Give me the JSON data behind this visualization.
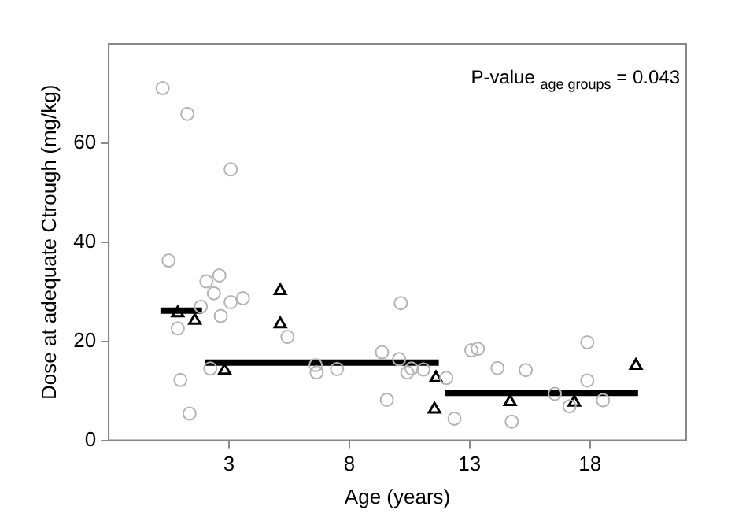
{
  "chart_data": {
    "type": "scatter",
    "xlabel": "Age (years)",
    "ylabel": "Dose at adequate Ctrough (mg/kg)",
    "annotations": [
      "P-value $_{age groups}$ = 0.043"
    ],
    "xlim": [
      -2,
      22
    ],
    "xticks": [
      3,
      8,
      13,
      18
    ],
    "ylim": [
      0,
      80
    ],
    "yticks": [
      0,
      20,
      40,
      60
    ],
    "grid": false,
    "legend": false,
    "series": [
      {
        "marker": "circle",
        "color": "#b4b4b4",
        "x": [
          0.24,
          1.27,
          3.07,
          0.49,
          2.06,
          2.6,
          2.37,
          3.07,
          3.58,
          1.83,
          2.66,
          0.87,
          0.98,
          1.36,
          2.22,
          5.43,
          6.6,
          6.64,
          7.49,
          9.36,
          9.56,
          10.14,
          10.07,
          10.41,
          10.59,
          11.08,
          12.03,
          12.37,
          13.07,
          13.34,
          14.16,
          15.33,
          14.75,
          16.54,
          17.15,
          17.89,
          17.89,
          18.54
        ],
        "values": [
          71.1,
          65.9,
          54.7,
          36.3,
          32.1,
          33.3,
          29.7,
          27.9,
          28.7,
          27,
          25.1,
          22.6,
          12.2,
          5.4,
          14.5,
          20.9,
          15.2,
          13.7,
          14.4,
          17.8,
          8.2,
          27.7,
          16.4,
          13.7,
          14.5,
          14.3,
          12.6,
          4.4,
          18.2,
          18.5,
          14.6,
          14.2,
          3.8,
          9.4,
          6.9,
          19.8,
          12.1,
          8.1
        ]
      },
      {
        "marker": "triangle",
        "color": "#000000",
        "x": [
          0.87,
          1.58,
          2.82,
          5.13,
          5.13,
          11.6,
          11.54,
          14.68,
          17.35,
          19.91
        ],
        "values": [
          25.7,
          24.2,
          14.1,
          30.2,
          23.5,
          12.6,
          6.3,
          7.8,
          7.7,
          15.1
        ]
      },
      {
        "type": "line",
        "marker": "none",
        "color": "#000000",
        "x": [
          0.15,
          1.88
        ],
        "values": [
          26.2,
          26.2
        ]
      },
      {
        "type": "line",
        "marker": "none",
        "color": "#000000",
        "x": [
          1.99,
          11.72
        ],
        "values": [
          15.7,
          15.7
        ]
      },
      {
        "type": "line",
        "marker": "none",
        "color": "#000000",
        "x": [
          11.99,
          20.0
        ],
        "values": [
          9.6,
          9.6
        ]
      }
    ]
  }
}
